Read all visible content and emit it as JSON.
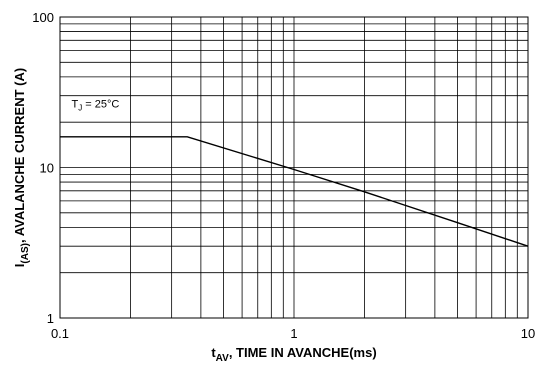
{
  "chart_data": {
    "type": "line",
    "title": "",
    "xscale": "log",
    "yscale": "log",
    "xlim": [
      0.1,
      10
    ],
    "ylim": [
      1,
      100
    ],
    "grid": true,
    "xlabel": {
      "main": "t",
      "sub": "AV",
      "rest": ", TIME IN AVANCHE(ms)"
    },
    "ylabel": {
      "main": "I",
      "sub": "(AS)",
      "rest": ", AVALANCHE CURRENT (A)"
    },
    "x_tick_labels": [
      {
        "value": 0.1,
        "label": "0.1"
      },
      {
        "value": 1,
        "label": "1"
      },
      {
        "value": 10,
        "label": "10"
      }
    ],
    "y_tick_labels": [
      {
        "value": 1,
        "label": "1"
      },
      {
        "value": 10,
        "label": "10"
      },
      {
        "value": 100,
        "label": "100"
      }
    ],
    "series": [
      {
        "color": "#000000",
        "x": [
          0.1,
          0.35,
          1,
          2,
          5,
          10
        ],
        "y": [
          16,
          16,
          9.7,
          6.9,
          4.3,
          3.0
        ]
      }
    ],
    "annotations": [
      {
        "main": "T",
        "sub": "J",
        "rest": " = 25°C",
        "x": 0.112,
        "y": 25
      }
    ]
  }
}
